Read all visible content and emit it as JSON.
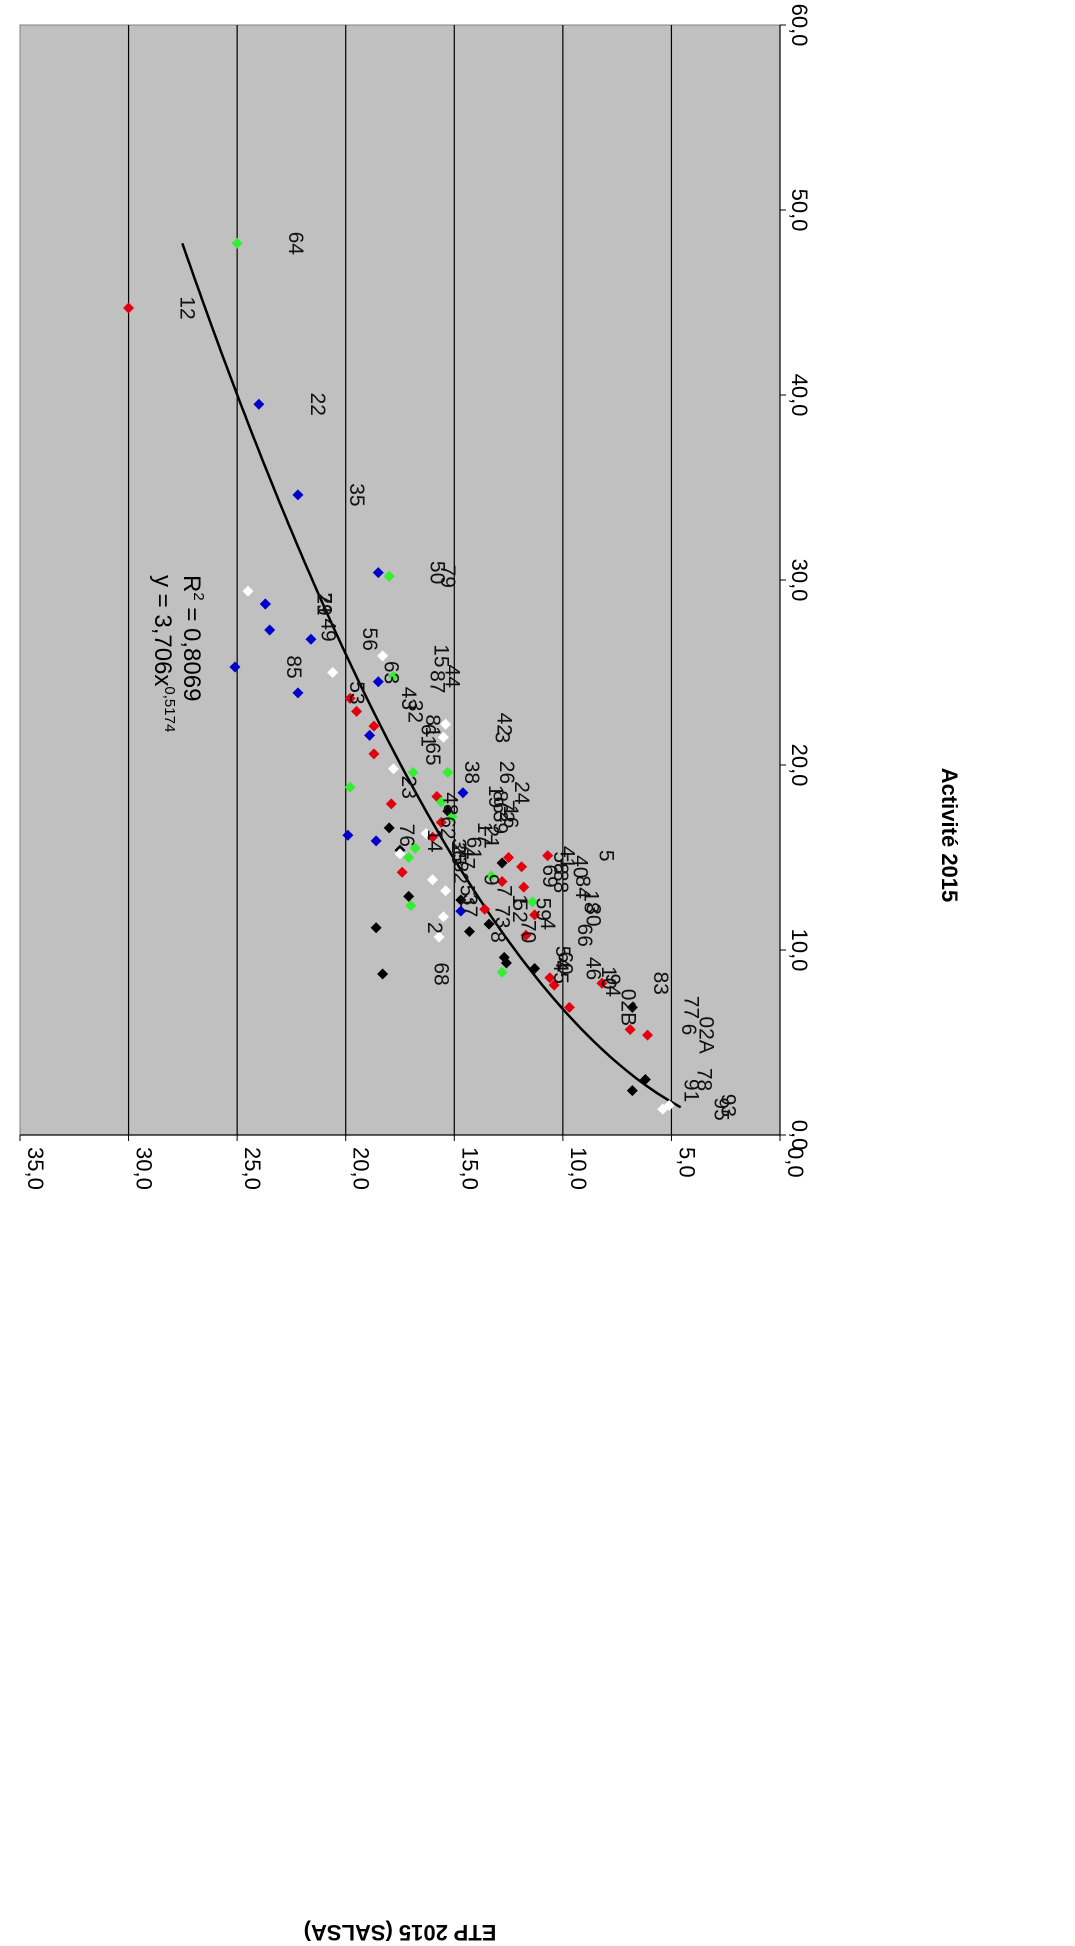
{
  "chart_data": {
    "type": "scatter",
    "title": "",
    "xlabel": "Activité 2015",
    "ylabel": "ETP 2015 (SALSA)",
    "xlim": [
      0,
      60
    ],
    "ylim": [
      0,
      35
    ],
    "x_ticks": [
      "0,0",
      "10,0",
      "20,0",
      "30,0",
      "40,0",
      "50,0",
      "60,0"
    ],
    "y_ticks": [
      "0,0",
      "5,0",
      "10,0",
      "15,0",
      "20,0",
      "25,0",
      "30,0",
      "35,0"
    ],
    "grid": "horizontal",
    "orientation": "rotated-90-clockwise",
    "plot_background": "#c0c0c0",
    "trendline": {
      "type": "power",
      "a": 3.706,
      "b": 0.5174,
      "x_range": [
        1.5,
        48.2
      ]
    },
    "annotations": {
      "equation": "y = 3,706x",
      "equation_exponent": "0,5174",
      "r2_prefix": "R",
      "r2_exponent": "2",
      "r2_value": " = 0,8069"
    },
    "colors": {
      "red": "#e3000f",
      "blue": "#0000cc",
      "green": "#33ee33",
      "black": "#000000",
      "white": "#ffffff"
    },
    "points": [
      {
        "x": 44.7,
        "y": 30.0,
        "color": "red",
        "label": "12"
      },
      {
        "x": 48.2,
        "y": 25.0,
        "color": "green",
        "label": "64"
      },
      {
        "x": 39.5,
        "y": 24.0,
        "color": "blue",
        "label": "22"
      },
      {
        "x": 34.6,
        "y": 22.2,
        "color": "blue",
        "label": "35"
      },
      {
        "x": 30.4,
        "y": 18.5,
        "color": "blue",
        "label": "50"
      },
      {
        "x": 30.2,
        "y": 18.0,
        "color": "green",
        "label": "79"
      },
      {
        "x": 29.4,
        "y": 24.5,
        "color": "white"
      },
      {
        "x": 28.7,
        "y": 23.7,
        "color": "blue",
        "label": "71"
      },
      {
        "x": 28.7,
        "y": 23.7,
        "color": "blue",
        "label": "29"
      },
      {
        "x": 27.3,
        "y": 23.5,
        "color": "blue",
        "label": "49"
      },
      {
        "x": 26.8,
        "y": 21.6,
        "color": "blue",
        "label": "56"
      },
      {
        "x": 25.9,
        "y": 18.3,
        "color": "white",
        "label": "15"
      },
      {
        "x": 25.3,
        "y": 25.1,
        "color": "blue",
        "label": "85"
      },
      {
        "x": 25.0,
        "y": 20.6,
        "color": "white",
        "label": "63"
      },
      {
        "x": 24.8,
        "y": 17.8,
        "color": "green",
        "label": "44"
      },
      {
        "x": 24.5,
        "y": 18.5,
        "color": "blue",
        "label": "87"
      },
      {
        "x": 23.9,
        "y": 22.2,
        "color": "blue",
        "label": "53"
      },
      {
        "x": 23.6,
        "y": 19.8,
        "color": "red",
        "label": "43"
      },
      {
        "x": 22.9,
        "y": 19.5,
        "color": "red",
        "label": "32"
      },
      {
        "x": 22.2,
        "y": 15.4,
        "color": "white",
        "label": "42"
      },
      {
        "x": 22.1,
        "y": 18.7,
        "color": "red",
        "label": "81"
      },
      {
        "x": 21.6,
        "y": 18.9,
        "color": "blue",
        "label": "61"
      },
      {
        "x": 21.5,
        "y": 15.5,
        "color": "white",
        "label": "3"
      },
      {
        "x": 20.6,
        "y": 18.7,
        "color": "red",
        "label": "65"
      },
      {
        "x": 19.8,
        "y": 17.8,
        "color": "white"
      },
      {
        "x": 19.6,
        "y": 16.9,
        "color": "green",
        "label": "38"
      },
      {
        "x": 19.6,
        "y": 15.3,
        "color": "green",
        "label": "26"
      },
      {
        "x": 18.8,
        "y": 19.8,
        "color": "green",
        "label": "23"
      },
      {
        "x": 18.5,
        "y": 14.6,
        "color": "blue",
        "label": "24"
      },
      {
        "x": 18.3,
        "y": 15.8,
        "color": "red",
        "label": "19"
      },
      {
        "x": 18.0,
        "y": 15.6,
        "color": "green",
        "label": "86"
      },
      {
        "x": 17.9,
        "y": 17.9,
        "color": "red",
        "label": "48"
      },
      {
        "x": 17.5,
        "y": 15.3,
        "color": "black",
        "label": "72"
      },
      {
        "x": 17.2,
        "y": 15.1,
        "color": "green",
        "label": "16"
      },
      {
        "x": 16.9,
        "y": 15.6,
        "color": "red",
        "label": "39"
      },
      {
        "x": 16.6,
        "y": 18.0,
        "color": "black",
        "label": "62"
      },
      {
        "x": 16.3,
        "y": 16.3,
        "color": "white",
        "label": "17"
      },
      {
        "x": 16.2,
        "y": 19.9,
        "color": "blue",
        "label": "76"
      },
      {
        "x": 16.1,
        "y": 16.0,
        "color": "red",
        "label": "21"
      },
      {
        "x": 15.9,
        "y": 18.6,
        "color": "blue",
        "label": "14"
      },
      {
        "x": 15.5,
        "y": 16.8,
        "color": "green",
        "label": "61"
      },
      {
        "x": 15.4,
        "y": 17.5,
        "color": "black",
        "label": "36"
      },
      {
        "x": 15.2,
        "y": 17.5,
        "color": "white",
        "label": "25"
      },
      {
        "x": 15.1,
        "y": 10.7,
        "color": "red",
        "label": "5"
      },
      {
        "x": 15.0,
        "y": 17.1,
        "color": "green",
        "label": "47"
      },
      {
        "x": 15.0,
        "y": 12.5,
        "color": "red",
        "label": "41"
      },
      {
        "x": 14.7,
        "y": 12.8,
        "color": "black",
        "label": "58"
      },
      {
        "x": 14.5,
        "y": 11.9,
        "color": "red",
        "label": "40"
      },
      {
        "x": 14.2,
        "y": 17.4,
        "color": "red",
        "label": "82"
      },
      {
        "x": 14.0,
        "y": 13.3,
        "color": "green",
        "label": "69"
      },
      {
        "x": 13.8,
        "y": 16.0,
        "color": "white",
        "label": "9"
      },
      {
        "x": 13.7,
        "y": 12.8,
        "color": "red",
        "label": "88"
      },
      {
        "x": 13.4,
        "y": 11.8,
        "color": "red",
        "label": "84"
      },
      {
        "x": 13.2,
        "y": 15.4,
        "color": "white",
        "label": "7"
      },
      {
        "x": 12.9,
        "y": 17.1,
        "color": "black",
        "label": "51"
      },
      {
        "x": 12.7,
        "y": 14.7,
        "color": "black",
        "label": "1"
      },
      {
        "x": 12.6,
        "y": 11.4,
        "color": "green",
        "label": "18"
      },
      {
        "x": 12.4,
        "y": 17.0,
        "color": "green",
        "label": "37"
      },
      {
        "x": 12.2,
        "y": 13.6,
        "color": "red",
        "label": "59"
      },
      {
        "x": 12.1,
        "y": 14.7,
        "color": "blue",
        "label": "52"
      },
      {
        "x": 11.9,
        "y": 11.3,
        "color": "red",
        "label": "30"
      },
      {
        "x": 11.8,
        "y": 15.5,
        "color": "white",
        "label": "73"
      },
      {
        "x": 11.4,
        "y": 13.4,
        "color": "black",
        "label": "4"
      },
      {
        "x": 11.2,
        "y": 18.6,
        "color": "black",
        "label": "2"
      },
      {
        "x": 11.0,
        "y": 14.3,
        "color": "black",
        "label": "70"
      },
      {
        "x": 10.8,
        "y": 11.7,
        "color": "red",
        "label": "66"
      },
      {
        "x": 10.7,
        "y": 15.7,
        "color": "white",
        "label": "8"
      },
      {
        "x": 9.6,
        "y": 12.7,
        "color": "black",
        "label": "54"
      },
      {
        "x": 9.3,
        "y": 12.6,
        "color": "black",
        "label": "60"
      },
      {
        "x": 9.0,
        "y": 11.3,
        "color": "black",
        "label": "46"
      },
      {
        "x": 8.8,
        "y": 12.8,
        "color": "green",
        "label": "45"
      },
      {
        "x": 8.7,
        "y": 18.3,
        "color": "black",
        "label": "68"
      },
      {
        "x": 8.5,
        "y": 10.6,
        "color": "red",
        "label": "10"
      },
      {
        "x": 8.2,
        "y": 8.2,
        "color": "red",
        "label": "83"
      },
      {
        "x": 8.1,
        "y": 10.4,
        "color": "red",
        "label": "94"
      },
      {
        "x": 6.9,
        "y": 9.7,
        "color": "red",
        "label": "02B"
      },
      {
        "x": 6.9,
        "y": 6.8,
        "color": "black",
        "label": "77"
      },
      {
        "x": 5.7,
        "y": 6.9,
        "color": "red",
        "label": "6"
      },
      {
        "x": 5.4,
        "y": 6.1,
        "color": "red",
        "label": "02A"
      },
      {
        "x": 3.0,
        "y": 6.2,
        "color": "black",
        "label": "78"
      },
      {
        "x": 2.4,
        "y": 6.8,
        "color": "black",
        "label": "91"
      },
      {
        "x": 1.6,
        "y": 5.1,
        "color": "white",
        "label": "93"
      },
      {
        "x": 1.4,
        "y": 5.4,
        "color": "white",
        "label": "95"
      }
    ]
  }
}
